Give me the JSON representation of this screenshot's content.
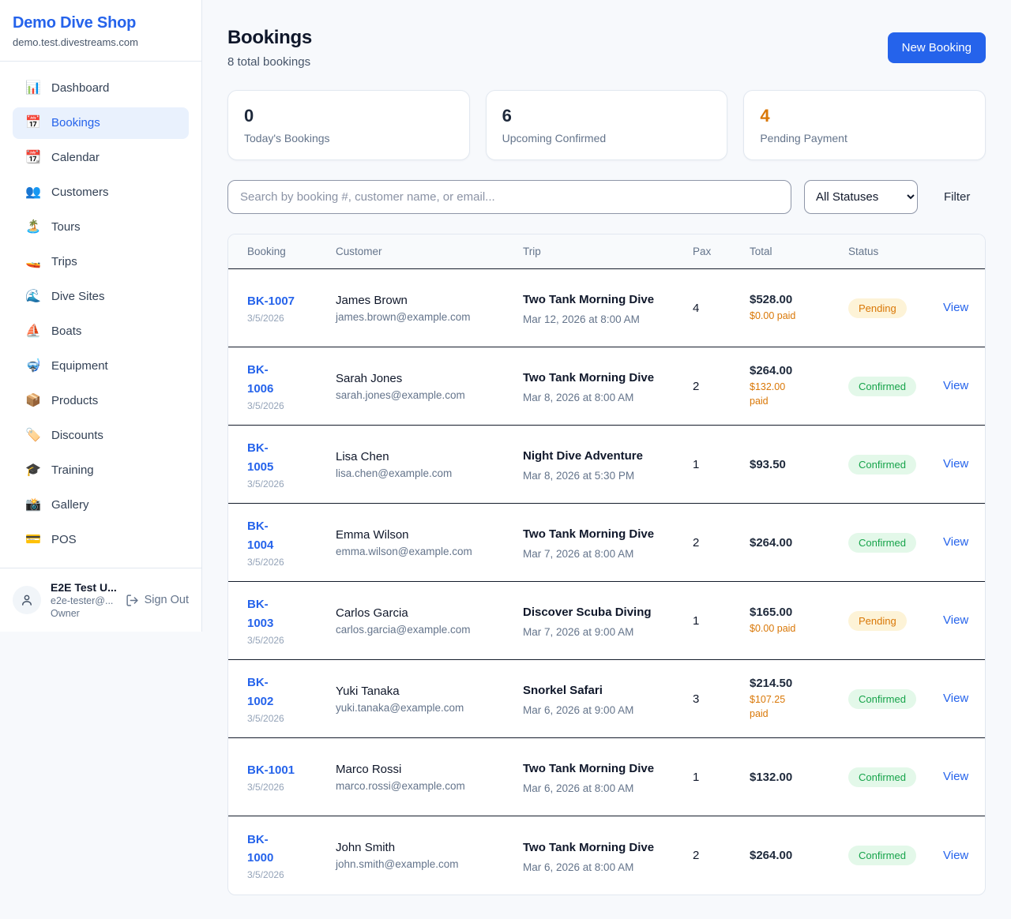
{
  "colors": {
    "accent": "#2563eb",
    "pending": "#d97706",
    "confirmed": "#16a34a"
  },
  "brand": {
    "name": "Demo Dive Shop",
    "domain": "demo.test.divestreams.com"
  },
  "sidebar": {
    "items": [
      {
        "icon": "📊",
        "icon_name": "bar-chart-icon",
        "label": "Dashboard",
        "active": false
      },
      {
        "icon": "📅",
        "icon_name": "calendar-icon",
        "label": "Bookings",
        "active": true
      },
      {
        "icon": "📆",
        "icon_name": "tear-off-calendar-icon",
        "label": "Calendar",
        "active": false
      },
      {
        "icon": "👥",
        "icon_name": "people-icon",
        "label": "Customers",
        "active": false
      },
      {
        "icon": "🏝️",
        "icon_name": "island-icon",
        "label": "Tours",
        "active": false
      },
      {
        "icon": "🚤",
        "icon_name": "speedboat-icon",
        "label": "Trips",
        "active": false
      },
      {
        "icon": "🌊",
        "icon_name": "wave-icon",
        "label": "Dive Sites",
        "active": false
      },
      {
        "icon": "⛵",
        "icon_name": "sailboat-icon",
        "label": "Boats",
        "active": false
      },
      {
        "icon": "🤿",
        "icon_name": "diving-mask-icon",
        "label": "Equipment",
        "active": false
      },
      {
        "icon": "📦",
        "icon_name": "package-icon",
        "label": "Products",
        "active": false
      },
      {
        "icon": "🏷️",
        "icon_name": "tag-icon",
        "label": "Discounts",
        "active": false
      },
      {
        "icon": "🎓",
        "icon_name": "graduation-cap-icon",
        "label": "Training",
        "active": false
      },
      {
        "icon": "📸",
        "icon_name": "camera-icon",
        "label": "Gallery",
        "active": false
      },
      {
        "icon": "💳",
        "icon_name": "credit-card-icon",
        "label": "POS",
        "active": false
      }
    ]
  },
  "user": {
    "name": "E2E Test U...",
    "email": "e2e-tester@...",
    "role": "Owner",
    "sign_out_label": "Sign Out"
  },
  "header": {
    "title": "Bookings",
    "subtitle": "8 total bookings",
    "new_booking_label": "New Booking"
  },
  "stats": [
    {
      "value": "0",
      "label": "Today's Bookings",
      "highlight": false
    },
    {
      "value": "6",
      "label": "Upcoming Confirmed",
      "highlight": false
    },
    {
      "value": "4",
      "label": "Pending Payment",
      "highlight": true
    }
  ],
  "toolbar": {
    "search_placeholder": "Search by booking #, customer name, or email...",
    "status_filter_value": "All Statuses",
    "filter_label": "Filter"
  },
  "table": {
    "columns": [
      "Booking",
      "Customer",
      "Trip",
      "Pax",
      "Total",
      "Status"
    ],
    "view_label": "View",
    "rows": [
      {
        "id": "BK-1007",
        "id_wrapped": false,
        "date": "3/5/2026",
        "customer_name": "James Brown",
        "customer_email": "james.brown@example.com",
        "trip_name": "Two Tank Morning Dive",
        "trip_datetime": "Mar 12, 2026 at 8:00 AM",
        "pax": "4",
        "total": "$528.00",
        "paid": "$0.00 paid",
        "paid_wrapped": false,
        "status": "Pending"
      },
      {
        "id": "BK-1006",
        "id_wrapped": true,
        "date": "3/5/2026",
        "customer_name": "Sarah Jones",
        "customer_email": "sarah.jones@example.com",
        "trip_name": "Two Tank Morning Dive",
        "trip_datetime": "Mar 8, 2026 at 8:00 AM",
        "pax": "2",
        "total": "$264.00",
        "paid": "$132.00 paid",
        "paid_wrapped": true,
        "status": "Confirmed"
      },
      {
        "id": "BK-1005",
        "id_wrapped": true,
        "date": "3/5/2026",
        "customer_name": "Lisa Chen",
        "customer_email": "lisa.chen@example.com",
        "trip_name": "Night Dive Adventure",
        "trip_datetime": "Mar 8, 2026 at 5:30 PM",
        "pax": "1",
        "total": "$93.50",
        "paid": null,
        "paid_wrapped": false,
        "status": "Confirmed"
      },
      {
        "id": "BK-1004",
        "id_wrapped": true,
        "date": "3/5/2026",
        "customer_name": "Emma Wilson",
        "customer_email": "emma.wilson@example.com",
        "trip_name": "Two Tank Morning Dive",
        "trip_datetime": "Mar 7, 2026 at 8:00 AM",
        "pax": "2",
        "total": "$264.00",
        "paid": null,
        "paid_wrapped": false,
        "status": "Confirmed"
      },
      {
        "id": "BK-1003",
        "id_wrapped": true,
        "date": "3/5/2026",
        "customer_name": "Carlos Garcia",
        "customer_email": "carlos.garcia@example.com",
        "trip_name": "Discover Scuba Diving",
        "trip_datetime": "Mar 7, 2026 at 9:00 AM",
        "pax": "1",
        "total": "$165.00",
        "paid": "$0.00 paid",
        "paid_wrapped": false,
        "status": "Pending"
      },
      {
        "id": "BK-1002",
        "id_wrapped": true,
        "date": "3/5/2026",
        "customer_name": "Yuki Tanaka",
        "customer_email": "yuki.tanaka@example.com",
        "trip_name": "Snorkel Safari",
        "trip_datetime": "Mar 6, 2026 at 9:00 AM",
        "pax": "3",
        "total": "$214.50",
        "paid": "$107.25 paid",
        "paid_wrapped": false,
        "status": "Confirmed"
      },
      {
        "id": "BK-1001",
        "id_wrapped": false,
        "date": "3/5/2026",
        "customer_name": "Marco Rossi",
        "customer_email": "marco.rossi@example.com",
        "trip_name": "Two Tank Morning Dive",
        "trip_datetime": "Mar 6, 2026 at 8:00 AM",
        "pax": "1",
        "total": "$132.00",
        "paid": null,
        "paid_wrapped": false,
        "status": "Confirmed"
      },
      {
        "id": "BK-1000",
        "id_wrapped": true,
        "date": "3/5/2026",
        "customer_name": "John Smith",
        "customer_email": "john.smith@example.com",
        "trip_name": "Two Tank Morning Dive",
        "trip_datetime": "Mar 6, 2026 at 8:00 AM",
        "pax": "2",
        "total": "$264.00",
        "paid": null,
        "paid_wrapped": false,
        "status": "Confirmed"
      }
    ]
  }
}
